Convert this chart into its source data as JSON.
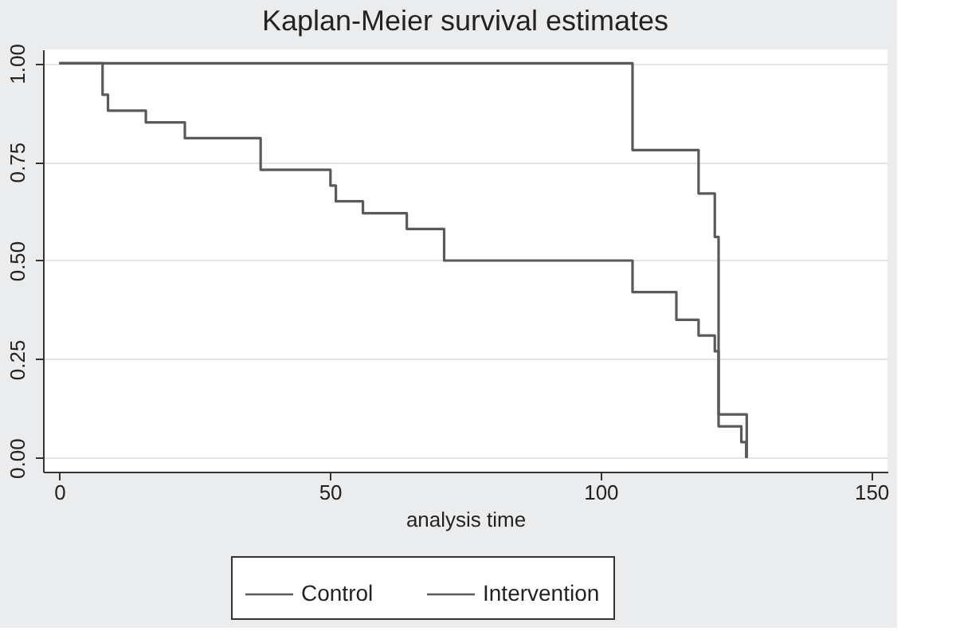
{
  "chart_data": {
    "type": "step",
    "title": "Kaplan-Meier survival estimates",
    "xlabel": "analysis time",
    "series": [
      {
        "name": "Control",
        "color": "#5a5a5a",
        "x": [
          0,
          8,
          9,
          16,
          23.2,
          37.2,
          50.1,
          51.1,
          56.1,
          64.2,
          71.1,
          105.9,
          114,
          118.1,
          121.1,
          121.8,
          126,
          126.9
        ],
        "values": [
          1,
          0.92,
          0.88,
          0.85,
          0.81,
          0.73,
          0.69,
          0.65,
          0.62,
          0.58,
          0.5,
          0.42,
          0.35,
          0.31,
          0.27,
          0.08,
          0.04,
          0
        ]
      },
      {
        "name": "Intervention",
        "color": "#5a5a5a",
        "x": [
          0,
          105.9,
          118.1,
          121.1,
          121.8,
          127
        ],
        "values": [
          1,
          0.78,
          0.67,
          0.56,
          0.11,
          0
        ]
      }
    ],
    "xlim": [
      -3,
      153
    ],
    "xticks": [
      0,
      50,
      100,
      150
    ],
    "ylim": [
      -0.035,
      1.035
    ],
    "yticks": [
      {
        "value": 0,
        "label": "0.00"
      },
      {
        "value": 0.25,
        "label": "0.25"
      },
      {
        "value": 0.5,
        "label": "0.50"
      },
      {
        "value": 0.75,
        "label": "0.75"
      },
      {
        "value": 1,
        "label": "1.00"
      }
    ],
    "grid": "y",
    "legend": "bottom",
    "line_style": "solid",
    "marker": "none"
  }
}
